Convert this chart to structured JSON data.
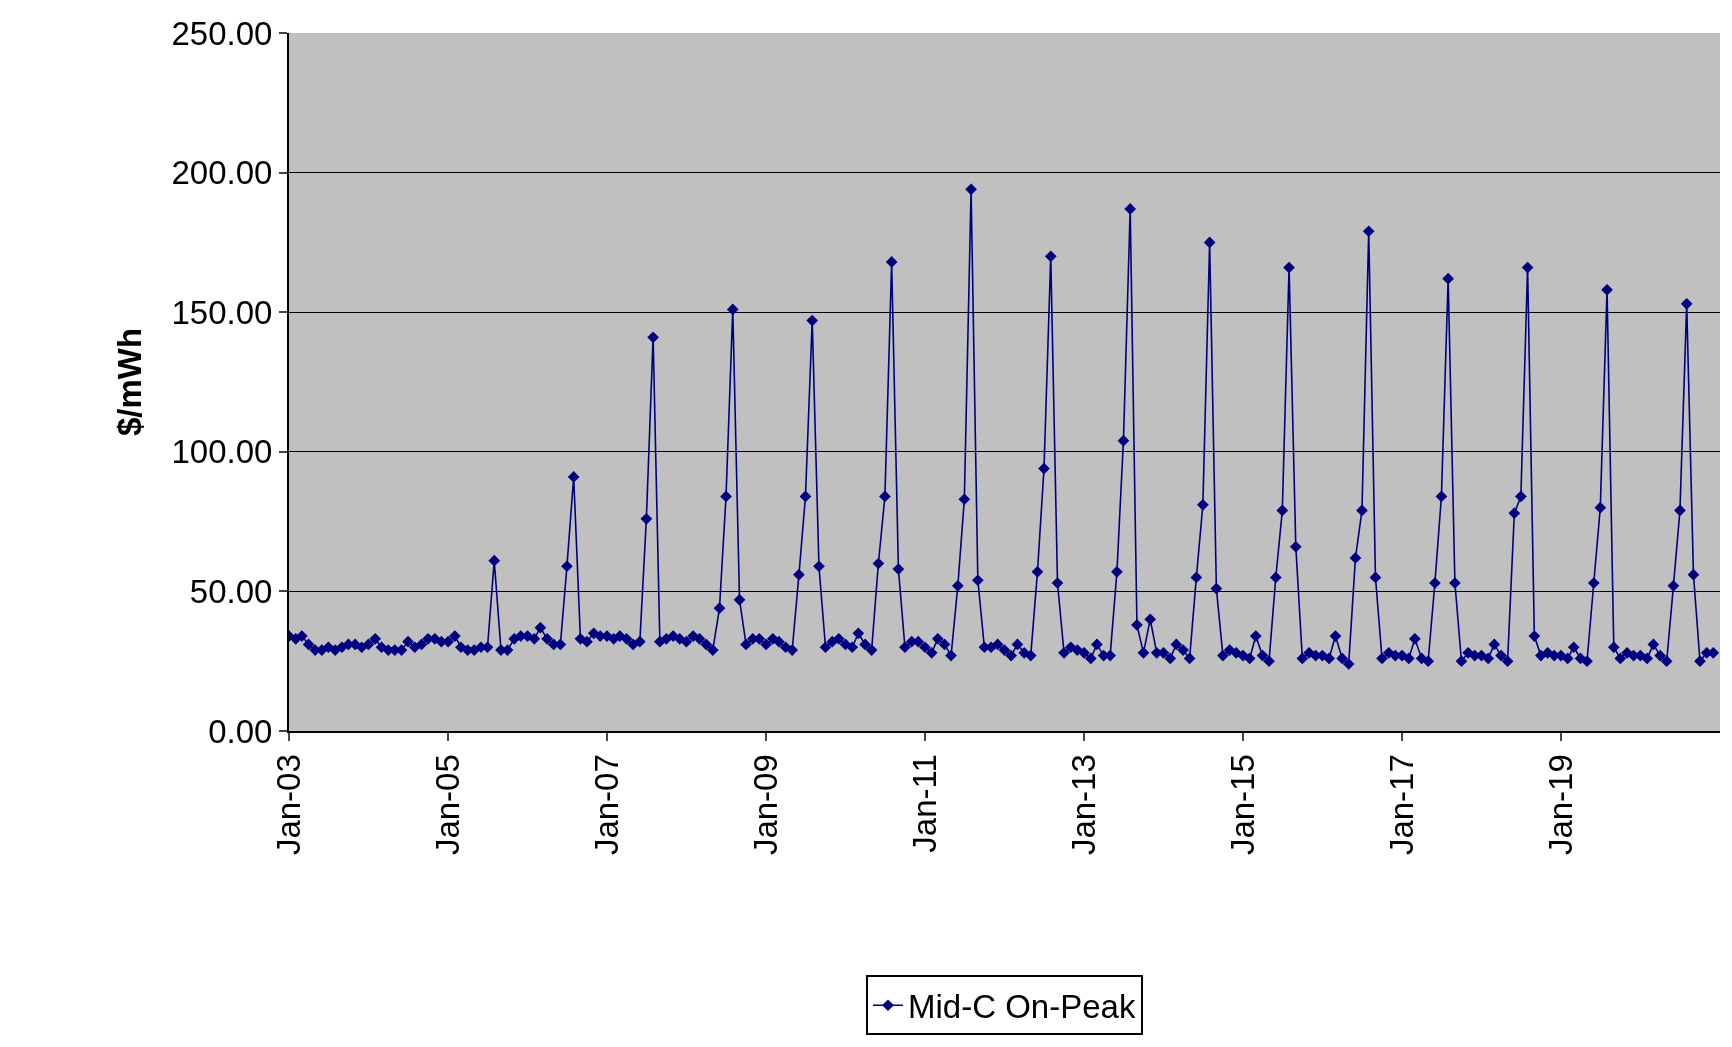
{
  "chart_data": {
    "type": "line",
    "ylabel": "$/mWh",
    "xlim": [
      "2003-01",
      "2021-01"
    ],
    "ylim": [
      0,
      250
    ],
    "xticks": [
      {
        "value": "2003-01",
        "label": "Jan-03"
      },
      {
        "value": "2005-01",
        "label": "Jan-05"
      },
      {
        "value": "2007-01",
        "label": "Jan-07"
      },
      {
        "value": "2009-01",
        "label": "Jan-09"
      },
      {
        "value": "2011-01",
        "label": "Jan-11"
      },
      {
        "value": "2013-01",
        "label": "Jan-13"
      },
      {
        "value": "2015-01",
        "label": "Jan-15"
      },
      {
        "value": "2017-01",
        "label": "Jan-17"
      },
      {
        "value": "2019-01",
        "label": "Jan-19"
      }
    ],
    "yticks": [
      {
        "value": 0,
        "label": "0.00"
      },
      {
        "value": 50,
        "label": "50.00"
      },
      {
        "value": 100,
        "label": "100.00"
      },
      {
        "value": 150,
        "label": "150.00"
      },
      {
        "value": 200,
        "label": "200.00"
      },
      {
        "value": 250,
        "label": "250.00"
      }
    ],
    "grid": "y",
    "legend": "bottom",
    "marker": "diamond",
    "line_style": "solid",
    "x": [
      "2003-01",
      "2003-02",
      "2003-03",
      "2003-04",
      "2003-05",
      "2003-06",
      "2003-07",
      "2003-08",
      "2003-09",
      "2003-10",
      "2003-11",
      "2003-12",
      "2004-01",
      "2004-02",
      "2004-03",
      "2004-04",
      "2004-05",
      "2004-06",
      "2004-07",
      "2004-08",
      "2004-09",
      "2004-10",
      "2004-11",
      "2004-12",
      "2005-01",
      "2005-02",
      "2005-03",
      "2005-04",
      "2005-05",
      "2005-06",
      "2005-07",
      "2005-08",
      "2005-09",
      "2005-10",
      "2005-11",
      "2005-12",
      "2006-01",
      "2006-02",
      "2006-03",
      "2006-04",
      "2006-05",
      "2006-06",
      "2006-07",
      "2006-08",
      "2006-09",
      "2006-10",
      "2006-11",
      "2006-12",
      "2007-01",
      "2007-02",
      "2007-03",
      "2007-04",
      "2007-05",
      "2007-06",
      "2007-07",
      "2007-08",
      "2007-09",
      "2007-10",
      "2007-11",
      "2007-12",
      "2008-01",
      "2008-02",
      "2008-03",
      "2008-04",
      "2008-05",
      "2008-06",
      "2008-07",
      "2008-08",
      "2008-09",
      "2008-10",
      "2008-11",
      "2008-12",
      "2009-01",
      "2009-02",
      "2009-03",
      "2009-04",
      "2009-05",
      "2009-06",
      "2009-07",
      "2009-08",
      "2009-09",
      "2009-10",
      "2009-11",
      "2009-12",
      "2010-01",
      "2010-02",
      "2010-03",
      "2010-04",
      "2010-05",
      "2010-06",
      "2010-07",
      "2010-08",
      "2010-09",
      "2010-10",
      "2010-11",
      "2010-12",
      "2011-01",
      "2011-02",
      "2011-03",
      "2011-04",
      "2011-05",
      "2011-06",
      "2011-07",
      "2011-08",
      "2011-09",
      "2011-10",
      "2011-11",
      "2011-12",
      "2012-01",
      "2012-02",
      "2012-03",
      "2012-04",
      "2012-05",
      "2012-06",
      "2012-07",
      "2012-08",
      "2012-09",
      "2012-10",
      "2012-11",
      "2012-12",
      "2013-01",
      "2013-02",
      "2013-03",
      "2013-04",
      "2013-05",
      "2013-06",
      "2013-07",
      "2013-08",
      "2013-09",
      "2013-10",
      "2013-11",
      "2013-12",
      "2014-01",
      "2014-02",
      "2014-03",
      "2014-04",
      "2014-05",
      "2014-06",
      "2014-07",
      "2014-08",
      "2014-09",
      "2014-10",
      "2014-11",
      "2014-12",
      "2015-01",
      "2015-02",
      "2015-03",
      "2015-04",
      "2015-05",
      "2015-06",
      "2015-07",
      "2015-08",
      "2015-09",
      "2015-10",
      "2015-11",
      "2015-12",
      "2016-01",
      "2016-02",
      "2016-03",
      "2016-04",
      "2016-05",
      "2016-06",
      "2016-07",
      "2016-08",
      "2016-09",
      "2016-10",
      "2016-11",
      "2016-12",
      "2017-01",
      "2017-02",
      "2017-03",
      "2017-04",
      "2017-05",
      "2017-06",
      "2017-07",
      "2017-08",
      "2017-09",
      "2017-10",
      "2017-11",
      "2017-12",
      "2018-01",
      "2018-02",
      "2018-03",
      "2018-04",
      "2018-05",
      "2018-06",
      "2018-07",
      "2018-08",
      "2018-09",
      "2018-10",
      "2018-11",
      "2018-12",
      "2019-01",
      "2019-02",
      "2019-03",
      "2019-04",
      "2019-05",
      "2019-06",
      "2019-07",
      "2019-08",
      "2019-09",
      "2019-10",
      "2019-11",
      "2019-12",
      "2020-01",
      "2020-02",
      "2020-03",
      "2020-04",
      "2020-05",
      "2020-06",
      "2020-07",
      "2020-08",
      "2020-09",
      "2020-10",
      "2020-11",
      "2020-12"
    ],
    "series": [
      {
        "name": "Mid-C On-Peak",
        "color": "#000080",
        "values": [
          34,
          33,
          34,
          31,
          29,
          29,
          30,
          29,
          30,
          31,
          31,
          30,
          31,
          33,
          30,
          29,
          29,
          29,
          32,
          30,
          31,
          33,
          33,
          32,
          32,
          34,
          30,
          29,
          29,
          30,
          30,
          61,
          29,
          29,
          33,
          34,
          34,
          33,
          37,
          33,
          31,
          31,
          59,
          91,
          33,
          32,
          35,
          34,
          34,
          33,
          34,
          33,
          31,
          32,
          76,
          141,
          32,
          33,
          34,
          33,
          32,
          34,
          33,
          31,
          29,
          44,
          84,
          151,
          47,
          31,
          33,
          33,
          31,
          33,
          32,
          30,
          29,
          56,
          84,
          147,
          59,
          30,
          32,
          33,
          31,
          30,
          35,
          31,
          29,
          60,
          84,
          168,
          58,
          30,
          32,
          32,
          30,
          28,
          33,
          31,
          27,
          52,
          83,
          194,
          54,
          30,
          30,
          31,
          29,
          27,
          31,
          28,
          27,
          57,
          94,
          170,
          53,
          28,
          30,
          29,
          28,
          26,
          31,
          27,
          27,
          57,
          104,
          187,
          38,
          28,
          40,
          28,
          28,
          26,
          31,
          29,
          26,
          55,
          81,
          175,
          51,
          27,
          29,
          28,
          27,
          26,
          34,
          27,
          25,
          55,
          79,
          166,
          66,
          26,
          28,
          27,
          27,
          26,
          34,
          26,
          24,
          62,
          79,
          179,
          55,
          26,
          28,
          27,
          27,
          26,
          33,
          26,
          25,
          53,
          84,
          162,
          53,
          25,
          28,
          27,
          27,
          26,
          31,
          27,
          25,
          78,
          84,
          166,
          34,
          27,
          28,
          27,
          27,
          26,
          30,
          26,
          25,
          53,
          80,
          158,
          30,
          26,
          28,
          27,
          27,
          26,
          31,
          27,
          25,
          52,
          79,
          153,
          56,
          25,
          28,
          28
        ]
      }
    ]
  }
}
